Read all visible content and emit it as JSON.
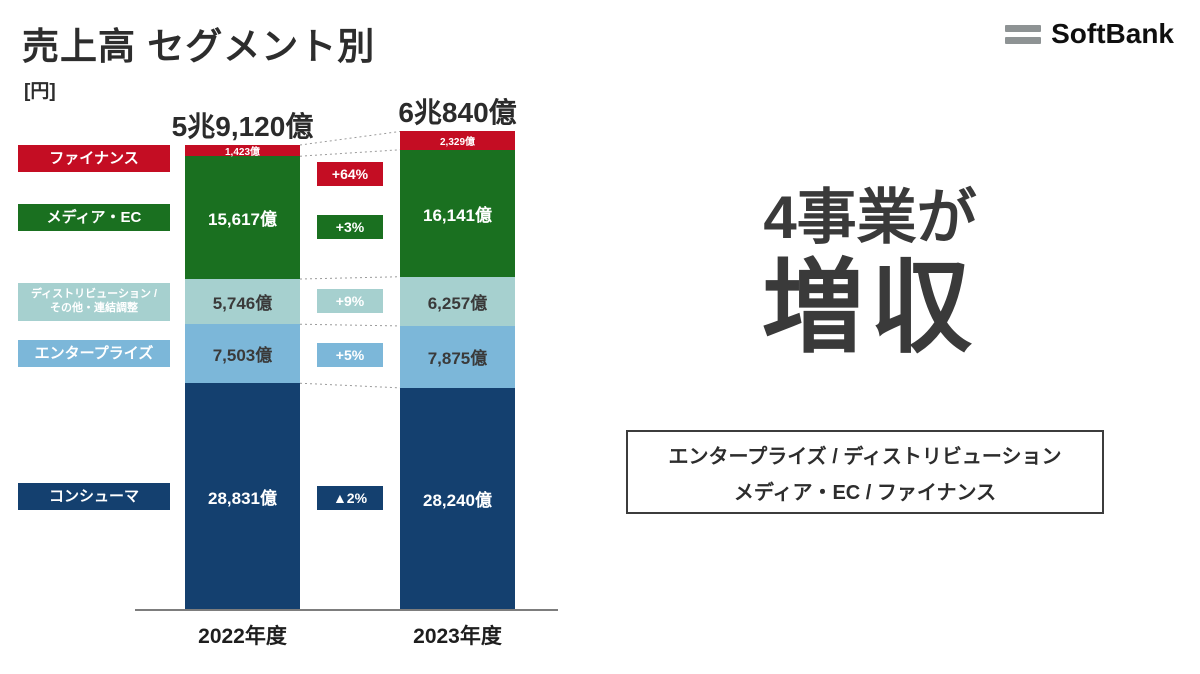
{
  "header": {
    "title": "売上高 セグメント別",
    "unit": "[円]",
    "brand": "SoftBank"
  },
  "chart_data": {
    "type": "bar",
    "stacked": true,
    "value_unit": "億円",
    "grid": false,
    "legend_position": "left",
    "categories": [
      "2022年度",
      "2023年度"
    ],
    "totals_display": [
      "5兆9,120億",
      "6兆840億"
    ],
    "totals_value_oku": [
      59120,
      60840
    ],
    "segments_bottom_to_top": [
      {
        "id": "consumer",
        "label_lines": [
          "コンシューマ"
        ],
        "color": "#14406f",
        "values_oku": [
          28831,
          28240
        ],
        "value_labels": [
          "28,831億",
          "28,240億"
        ],
        "value_text_color": "#ffffff",
        "change_label": "▲2%"
      },
      {
        "id": "enterprise",
        "label_lines": [
          "エンタープライズ"
        ],
        "color": "#7cb7d9",
        "values_oku": [
          7503,
          7875
        ],
        "value_labels": [
          "7,503億",
          "7,875億"
        ],
        "value_text_color": "#3a3a3a",
        "change_label": "+5%"
      },
      {
        "id": "distribution",
        "label_lines": [
          "ディストリビューション /",
          "その他・連結調整"
        ],
        "color": "#a6d0cf",
        "values_oku": [
          5746,
          6257
        ],
        "value_labels": [
          "5,746億",
          "6,257億"
        ],
        "value_text_color": "#3a3a3a",
        "change_label": "+9%"
      },
      {
        "id": "media-ec",
        "label_lines": [
          "メディア・EC"
        ],
        "color": "#1a7020",
        "values_oku": [
          15617,
          16141
        ],
        "value_labels": [
          "15,617億",
          "16,141億"
        ],
        "value_text_color": "#ffffff",
        "change_label": "+3%"
      },
      {
        "id": "finance",
        "label_lines": [
          "ファイナンス"
        ],
        "color": "#c40d23",
        "values_oku": [
          1423,
          2329
        ],
        "value_labels": [
          "1,423億",
          "2,329億"
        ],
        "value_text_color": "#ffffff",
        "change_label": "+64%",
        "small_value_font": true
      }
    ]
  },
  "right_panel": {
    "headline_1": "4事業が",
    "headline_2": "増収",
    "box_line_1": "エンタープライズ / ディストリビューション",
    "box_line_2": "メディア・EC / ファイナンス"
  }
}
